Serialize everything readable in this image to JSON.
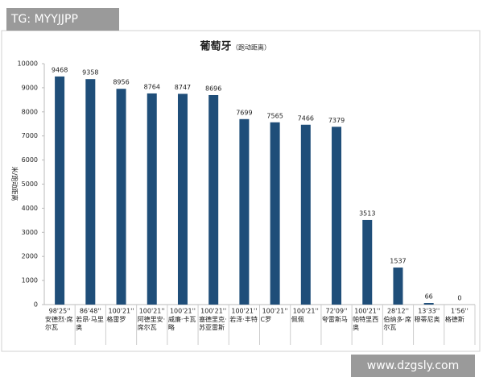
{
  "chart_data": {
    "type": "bar",
    "title": "葡萄牙",
    "subtitle": "（跑动距离）",
    "y_label": "米/跑动距离",
    "categories": [
      "安德烈·席尔瓦",
      "若昂·马里奥",
      "格雷罗",
      "阿德里安·席尔瓦",
      "威廉·卡瓦略",
      "塞德里克·苏亚雷斯",
      "若泽·丰特",
      "C罗",
      "佩佩",
      "夸雷斯马",
      "帕特里西奥",
      "伯纳多·席尔瓦",
      "穆蒂尼奥",
      "格德斯"
    ],
    "playing_times": [
      "98'25''",
      "86'48''",
      "100'21''",
      "100'21''",
      "100'21''",
      "100'21''",
      "100'21''",
      "100'21''",
      "100'21''",
      "72'09''",
      "100'21''",
      "28'12''",
      "13'33''",
      "1'56''"
    ],
    "values": [
      9468,
      9358,
      8956,
      8764,
      8747,
      8696,
      7699,
      7565,
      7466,
      7379,
      3513,
      1537,
      66,
      0
    ],
    "color": "#1f4e79",
    "ylim": [
      0,
      10000
    ],
    "yticks": [
      0,
      1000,
      2000,
      3000,
      4000,
      5000,
      6000,
      7000,
      8000,
      9000,
      10000
    ],
    "grid": false
  },
  "watermarks": [
    "TG: MYYJJPP",
    "www.dzgsly.com"
  ]
}
